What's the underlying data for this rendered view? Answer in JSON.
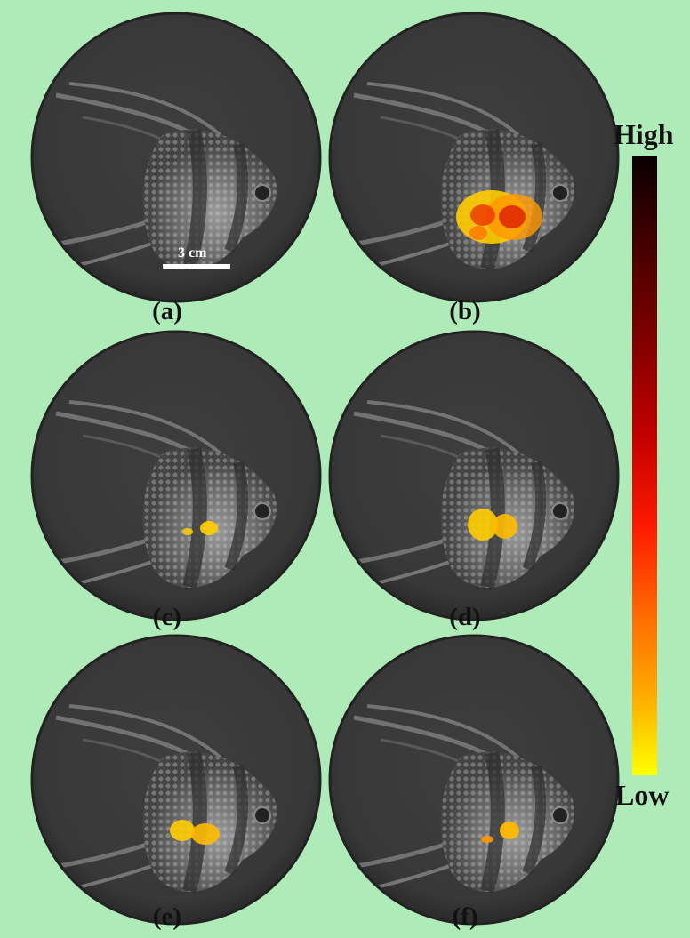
{
  "panels": [
    {
      "id": "a",
      "caption": "(a)",
      "heat": "none"
    },
    {
      "id": "b",
      "caption": "(b)",
      "heat": "large"
    },
    {
      "id": "c",
      "caption": "(c)",
      "heat": "small"
    },
    {
      "id": "d",
      "caption": "(d)",
      "heat": "medium"
    },
    {
      "id": "e",
      "caption": "(e)",
      "heat": "medium"
    },
    {
      "id": "f",
      "caption": "(f)",
      "heat": "small"
    }
  ],
  "scale_bar": {
    "label": "3 cm"
  },
  "colorbar": {
    "high": "High",
    "low": "Low",
    "colors": [
      "#0a0002",
      "#7a0000",
      "#ff1a00",
      "#ff6a00",
      "#ffff00"
    ]
  },
  "colors": {
    "background": "#aeebb9",
    "dish": "#3a3a3a"
  }
}
